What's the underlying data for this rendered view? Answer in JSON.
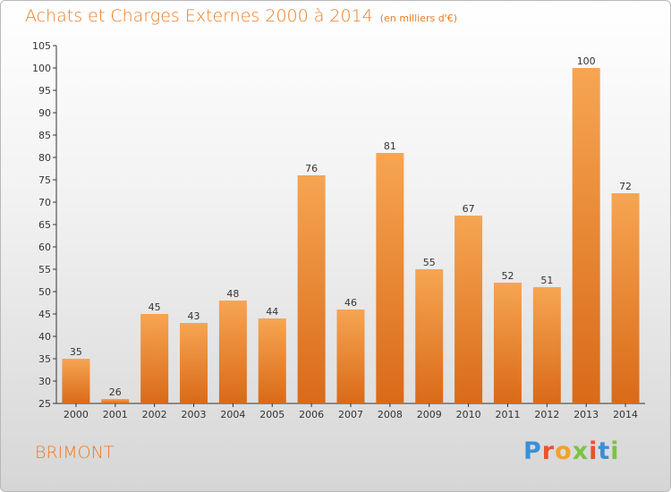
{
  "title": "Achats et Charges Externes 2000 à 2014",
  "subtitle": "(en milliers d'€)",
  "place": "BRIMONT",
  "logo": {
    "text": "Proxiti",
    "letters": [
      "P",
      "r",
      "o",
      "x",
      "i",
      "t",
      "i"
    ],
    "colors": [
      "#3b8fd6",
      "#e9532d",
      "#f2a12a",
      "#7cc243",
      "#e9532d",
      "#3b8fd6",
      "#7cc243"
    ]
  },
  "colors": {
    "accent": "#ef7a22",
    "bar_top": "#f6a552",
    "bar_bottom": "#d96a18"
  },
  "chart_data": {
    "type": "bar",
    "categories": [
      "2000",
      "2001",
      "2002",
      "2003",
      "2004",
      "2005",
      "2006",
      "2007",
      "2008",
      "2009",
      "2010",
      "2011",
      "2012",
      "2013",
      "2014"
    ],
    "values": [
      35,
      26,
      45,
      43,
      48,
      44,
      76,
      46,
      81,
      55,
      67,
      52,
      51,
      100,
      72
    ],
    "ylim": [
      25,
      105
    ],
    "yticks": [
      25,
      30,
      35,
      40,
      45,
      50,
      55,
      60,
      65,
      70,
      75,
      80,
      85,
      90,
      95,
      100,
      105
    ],
    "grid": false,
    "data_labels": true
  }
}
